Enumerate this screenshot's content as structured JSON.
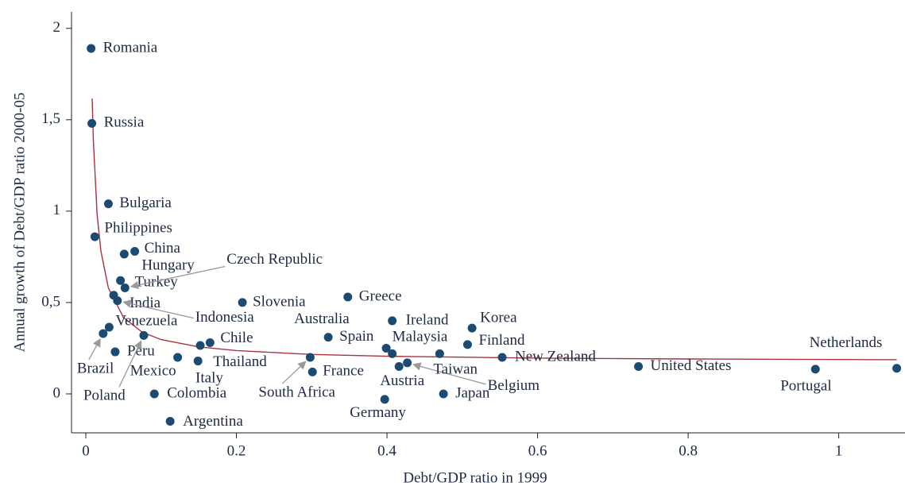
{
  "chart_data": {
    "type": "scatter",
    "x_label": "Debt/GDP ratio in 1999",
    "y_label": "Annual growth of Debt/GDP ratio 2000-05",
    "labels": [
      "Romania",
      "Russia",
      "Bulgaria",
      "Philippines",
      "China",
      "Hungary",
      "Turkey",
      "Czech Republic",
      "India",
      "Indonesia",
      "Slovenia",
      "Greece",
      "Venezuela",
      "Brazil",
      "Peru",
      "Mexico",
      "Poland",
      "Thailand",
      "Italy",
      "Chile",
      "Colombia",
      "Argentina",
      "Spain",
      "South Africa",
      "France",
      "Germany",
      "Australia",
      "Malaysia",
      "Ireland",
      "Austria",
      "Belgium",
      "Taiwan",
      "Japan",
      "Korea",
      "Finland",
      "New Zealand",
      "United States",
      "Portugal",
      "Netherlands"
    ],
    "x": [
      0.007,
      0.008,
      0.03,
      0.012,
      0.065,
      0.051,
      0.046,
      0.052,
      0.037,
      0.042,
      0.208,
      0.348,
      0.031,
      0.023,
      0.039,
      0.122,
      0.077,
      0.149,
      0.152,
      0.165,
      0.091,
      0.112,
      0.322,
      0.298,
      0.301,
      0.397,
      0.399,
      0.407,
      0.407,
      0.416,
      0.427,
      0.47,
      0.475,
      0.513,
      0.507,
      0.553,
      0.734,
      0.969,
      1.077
    ],
    "y": [
      1.89,
      1.48,
      1.04,
      0.86,
      0.78,
      0.765,
      0.62,
      0.58,
      0.54,
      0.51,
      0.5,
      0.53,
      0.365,
      0.33,
      0.23,
      0.2,
      0.32,
      0.18,
      0.265,
      0.28,
      0.0,
      -0.15,
      0.31,
      0.2,
      0.12,
      -0.03,
      0.25,
      0.22,
      0.4,
      0.15,
      0.17,
      0.22,
      0.0,
      0.36,
      0.27,
      0.2,
      0.15,
      0.135,
      0.14
    ],
    "color": "#1b4a72",
    "fit": {
      "color": "#a8323e",
      "x": [
        0.0084,
        0.01,
        0.015,
        0.02,
        0.03,
        0.05,
        0.075,
        0.1,
        0.15,
        0.2,
        0.3,
        0.4,
        0.6,
        0.8,
        1.077
      ],
      "y": [
        1.616,
        1.386,
        0.983,
        0.781,
        0.579,
        0.418,
        0.337,
        0.297,
        0.257,
        0.237,
        0.216,
        0.206,
        0.196,
        0.191,
        0.187
      ]
    },
    "xlim": [
      -0.019,
      1.088
    ],
    "ylim": [
      -0.213,
      2.09
    ],
    "xticks": [
      0,
      0.2,
      0.4,
      0.6,
      0.8,
      1
    ],
    "yticks": [
      0,
      {
        "value": 0.5,
        "label": "0,5"
      },
      1,
      {
        "value": 1.5,
        "label": "1,5"
      },
      2
    ]
  }
}
